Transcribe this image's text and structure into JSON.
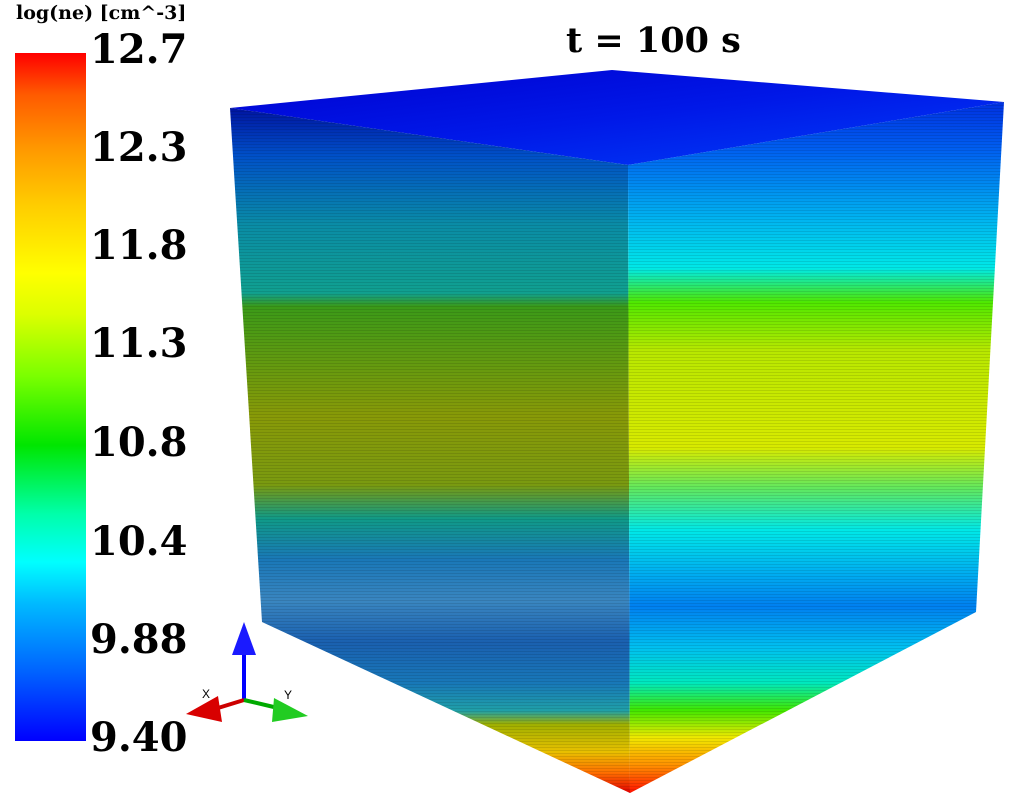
{
  "colorbar": {
    "title": "log(ne) [cm^-3]",
    "ticks": [
      "12.7",
      "12.3",
      "11.8",
      "11.3",
      "10.8",
      "10.4",
      "9.88",
      "9.40"
    ],
    "range": [
      9.4,
      12.7
    ]
  },
  "time_label": "t = 100 s",
  "axes_triad": {
    "x_label": "X",
    "y_label": "Y",
    "z_color": "#0000ff",
    "x_color": "#cc0000",
    "y_color": "#00aa00"
  }
}
